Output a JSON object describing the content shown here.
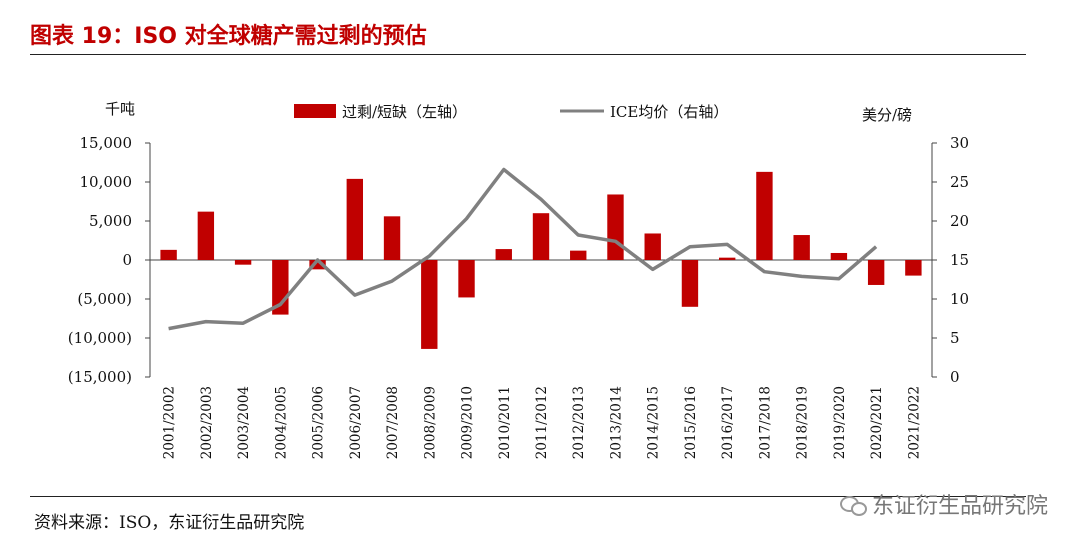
{
  "header": {
    "title": "图表 19：ISO 对全球糖产需过剩的预估"
  },
  "footer": {
    "source": "资料来源：ISO，东证衍生品研究院",
    "watermark": "东证衍生品研究院"
  },
  "chart_data": {
    "type": "bar+line",
    "categories": [
      "2001/2002",
      "2002/2003",
      "2003/2004",
      "2004/2005",
      "2005/2006",
      "2006/2007",
      "2007/2008",
      "2008/2009",
      "2009/2010",
      "2010/2011",
      "2011/2012",
      "2012/2013",
      "2013/2014",
      "2014/2015",
      "2015/2016",
      "2016/2017",
      "2017/2018",
      "2018/2019",
      "2019/2020",
      "2020/2021",
      "2021/2022"
    ],
    "left_axis": {
      "unit": "千吨",
      "ylim": [
        -15000,
        15000
      ],
      "ticks": [
        15000,
        10000,
        5000,
        0,
        -5000,
        -10000,
        -15000
      ],
      "tick_labels": [
        "15,000",
        "10,000",
        "5,000",
        "0",
        "(5,000)",
        "(10,000)",
        "(15,000)"
      ]
    },
    "right_axis": {
      "unit": "美分/磅",
      "ylim": [
        0,
        30
      ],
      "ticks": [
        30,
        25,
        20,
        15,
        10,
        5,
        0
      ],
      "tick_labels": [
        "30",
        "25",
        "20",
        "15",
        "10",
        "5",
        "0"
      ]
    },
    "series": [
      {
        "name": "过剩/短缺（左轴）",
        "type": "bar",
        "axis": "left",
        "color": "#c00000",
        "values": [
          1300,
          6200,
          -600,
          -7000,
          -1200,
          10400,
          5600,
          -11400,
          -4800,
          1400,
          6000,
          1200,
          8400,
          3400,
          -6000,
          300,
          11300,
          3200,
          900,
          -3200,
          -2000
        ]
      },
      {
        "name": "ICE均价（右轴）",
        "type": "line",
        "axis": "right",
        "color": "#808080",
        "values": [
          6.2,
          7.1,
          6.9,
          9.3,
          15.0,
          10.5,
          12.3,
          15.5,
          20.3,
          26.6,
          22.8,
          18.2,
          17.4,
          13.8,
          16.7,
          17.0,
          13.5,
          12.9,
          12.6,
          16.7,
          null
        ]
      }
    ],
    "grid": false,
    "legend": "top-center"
  }
}
